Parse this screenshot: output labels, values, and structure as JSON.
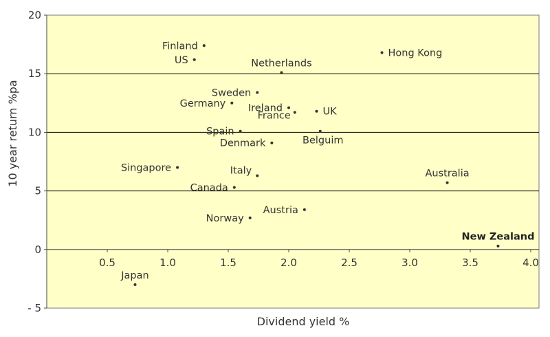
{
  "chart_data": {
    "type": "scatter",
    "title": "",
    "xlabel": "Dividend yield %",
    "ylabel": "10 year return  %pa",
    "xlim": [
      0,
      4.0
    ],
    "ylim": [
      -5,
      20
    ],
    "xticks": [
      {
        "v": 0.5,
        "label": "0.5"
      },
      {
        "v": 1.0,
        "label": "1.0"
      },
      {
        "v": 1.5,
        "label": "1.5"
      },
      {
        "v": 2.0,
        "label": "2.0"
      },
      {
        "v": 2.5,
        "label": "2.5"
      },
      {
        "v": 3.0,
        "label": "3.0"
      },
      {
        "v": 3.5,
        "label": "3.5"
      },
      {
        "v": 4.0,
        "label": "4.0"
      }
    ],
    "yticks": [
      {
        "v": -5,
        "label": "- 5"
      },
      {
        "v": 0,
        "label": "0"
      },
      {
        "v": 5,
        "label": "5"
      },
      {
        "v": 10,
        "label": "10"
      },
      {
        "v": 15,
        "label": "15"
      },
      {
        "v": 20,
        "label": "20"
      }
    ],
    "gridlines_y": [
      5,
      10,
      15
    ],
    "grid": true,
    "legend": "none",
    "colors": {
      "plot_background": "#ffffc8",
      "point": "#333333",
      "gridline": "#000000"
    },
    "points": [
      {
        "label": "Finland",
        "x": 1.3,
        "y": 17.4,
        "anchor": "end"
      },
      {
        "label": "US",
        "x": 1.22,
        "y": 16.2,
        "anchor": "end"
      },
      {
        "label": "Hong Kong",
        "x": 2.77,
        "y": 16.8,
        "anchor": "start"
      },
      {
        "label": "Netherlands",
        "x": 1.94,
        "y": 15.1,
        "anchor": "middle-above"
      },
      {
        "label": "Sweden",
        "x": 1.74,
        "y": 13.4,
        "anchor": "end"
      },
      {
        "label": "Germany",
        "x": 1.53,
        "y": 12.5,
        "anchor": "end"
      },
      {
        "label": "Ireland",
        "x": 2.0,
        "y": 12.1,
        "anchor": "end"
      },
      {
        "label": "France",
        "x": 2.05,
        "y": 11.7,
        "anchor": "end-below"
      },
      {
        "label": "UK",
        "x": 2.23,
        "y": 11.8,
        "anchor": "start"
      },
      {
        "label": "Spain",
        "x": 1.6,
        "y": 10.1,
        "anchor": "end"
      },
      {
        "label": "Belguim",
        "x": 2.26,
        "y": 10.1,
        "anchor": "middle-below"
      },
      {
        "label": "Denmark",
        "x": 1.86,
        "y": 9.1,
        "anchor": "end"
      },
      {
        "label": "Singapore",
        "x": 1.08,
        "y": 7.0,
        "anchor": "end"
      },
      {
        "label": "Italy",
        "x": 1.74,
        "y": 6.3,
        "anchor": "end-above"
      },
      {
        "label": "Canada",
        "x": 1.55,
        "y": 5.3,
        "anchor": "end"
      },
      {
        "label": "Australia",
        "x": 3.31,
        "y": 5.7,
        "anchor": "middle-above"
      },
      {
        "label": "Austria",
        "x": 2.13,
        "y": 3.4,
        "anchor": "end"
      },
      {
        "label": "Norway",
        "x": 1.68,
        "y": 2.7,
        "anchor": "end"
      },
      {
        "label": "New Zealand",
        "x": 3.73,
        "y": 0.3,
        "anchor": "middle-above",
        "bold": true
      },
      {
        "label": "Japan",
        "x": 0.73,
        "y": -3.0,
        "anchor": "middle-above"
      }
    ]
  }
}
